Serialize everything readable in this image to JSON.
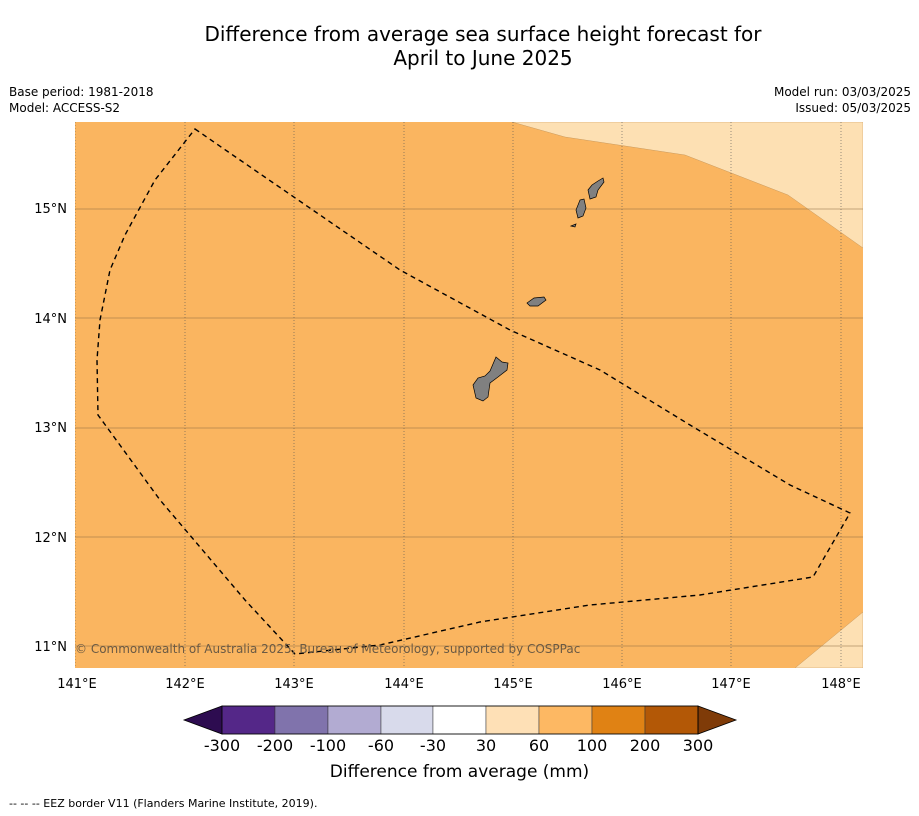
{
  "title_line1": "Difference from average sea surface height forecast for",
  "title_line2": "April to June 2025",
  "meta_left": [
    "Base period: 1981-2018",
    "Model: ACCESS-S2"
  ],
  "meta_right": [
    "Model run: 03/03/2025",
    "Issued: 05/03/2025"
  ],
  "map": {
    "lon_ticks": [
      "141°E",
      "142°E",
      "143°E",
      "144°E",
      "145°E",
      "146°E",
      "147°E",
      "148°E"
    ],
    "lat_ticks": [
      "15°N",
      "14°N",
      "13°N",
      "12°N",
      "11°N"
    ],
    "copyright": "© Commonwealth of Australia 2025, Bureau of Meteorology, supported by COSPPac",
    "land_color": "#808080",
    "field_color": "#fab560",
    "light_band_color": "#fde0b3",
    "eez_line": "dashed"
  },
  "colorbar": {
    "labels": [
      "-300",
      "-200",
      "-100",
      "-60",
      "-30",
      "30",
      "60",
      "100",
      "200",
      "300"
    ],
    "colors": [
      "#2d0c50",
      "#542788",
      "#8073ac",
      "#b2abd2",
      "#d8daeb",
      "#ffffff",
      "#fee0b6",
      "#fdb863",
      "#e08214",
      "#b35806",
      "#7f3b08"
    ],
    "label": "Difference from average (mm)"
  },
  "footnote": "--  --  -- EEZ border V11 (Flanders Marine Institute, 2019)."
}
